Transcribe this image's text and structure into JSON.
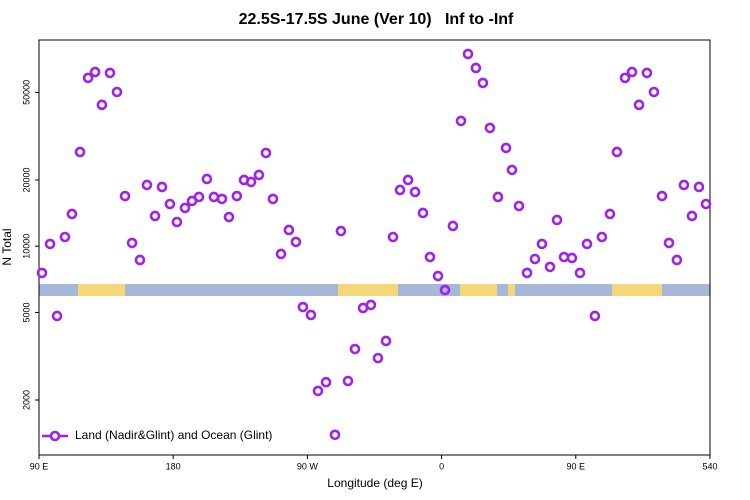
{
  "chart_data": {
    "type": "scatter",
    "title": "22.5S-17.5S June (Ver 10)   Inf to -Inf",
    "xlabel": "Longitude (deg E)",
    "ylabel": "N Total",
    "log_y": true,
    "legend": "bottom-left",
    "xlim": [
      90,
      540
    ],
    "ylim": [
      1125,
      86500
    ],
    "xticks": [
      {
        "value": 90,
        "label": "90 E"
      },
      180,
      {
        "value": 270,
        "label": "90 W"
      },
      0,
      {
        "value": 450,
        "label": "90 E"
      },
      540
    ],
    "xtick_positions": [
      90,
      180,
      270,
      360,
      450,
      540
    ],
    "yticks": [
      2000,
      5000,
      10000,
      20000,
      50000
    ],
    "series": [
      {
        "name": "Land (Nadir&Glint) and Ocean (Glint)",
        "color": "#a020f0",
        "x": [
          92.0,
          97.4,
          102.1,
          107.4,
          112.1,
          117.5,
          122.9,
          127.6,
          132.2,
          137.6,
          142.3,
          147.7,
          152.4,
          157.7,
          162.4,
          167.8,
          172.5,
          177.8,
          182.5,
          187.9,
          192.6,
          197.3,
          202.6,
          207.3,
          212.7,
          217.4,
          222.7,
          227.5,
          232.2,
          237.5,
          242.2,
          246.9,
          252.3,
          257.6,
          262.3,
          267.0,
          272.4,
          277.1,
          282.5,
          288.5,
          292.5,
          297.2,
          301.9,
          307.3,
          312.6,
          317.3,
          322.7,
          327.4,
          332.1,
          337.5,
          342.2,
          347.5,
          352.2,
          357.6,
          362.3,
          367.6,
          373.0,
          377.7,
          383.0,
          387.7,
          392.4,
          397.8,
          403.2,
          407.2,
          411.9,
          417.3,
          422.6,
          427.3,
          432.7,
          437.4,
          442.1,
          447.4,
          452.8,
          457.5,
          462.8,
          467.5,
          472.9,
          477.6,
          483.0,
          487.7,
          492.4,
          497.7,
          502.4,
          507.8,
          512.5,
          517.8,
          522.5,
          527.9,
          532.6,
          537.3
        ],
        "values": [
          7560,
          10240,
          4820,
          11010,
          14010,
          26800,
          58200,
          61900,
          43900,
          61300,
          50200,
          16900,
          10350,
          8660,
          18980,
          13720,
          18590,
          15550,
          12880,
          14930,
          16050,
          16740,
          20210,
          16740,
          16400,
          13570,
          16900,
          20000,
          19590,
          21070,
          26540,
          16400,
          9220,
          11850,
          10460,
          5290,
          4870,
          2200,
          2410,
          1390,
          11720,
          2440,
          3410,
          5240,
          5410,
          3100,
          3710,
          11010,
          18010,
          20000,
          17640,
          14160,
          8930,
          7320,
          6320,
          12360,
          37090,
          74760,
          64570,
          55200,
          34470,
          16740,
          27970,
          22210,
          15230,
          7560,
          8750,
          10240,
          8050,
          13160,
          8930,
          8840,
          7560,
          10240,
          4820,
          11010,
          14010,
          26800,
          58200,
          61900,
          43900,
          61300,
          50200,
          16900,
          10350,
          8660,
          18980,
          13720,
          18590,
          15550
        ]
      }
    ]
  }
}
